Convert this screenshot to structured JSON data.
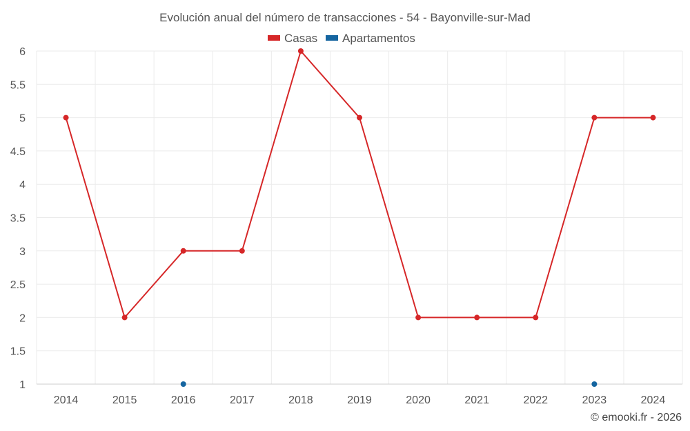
{
  "chart_data": {
    "type": "line",
    "title": "Evolución anual del número de transacciones - 54 - Bayonville-sur-Mad",
    "x": [
      "2014",
      "2015",
      "2016",
      "2017",
      "2018",
      "2019",
      "2020",
      "2021",
      "2022",
      "2023",
      "2024"
    ],
    "ylim": [
      1,
      6
    ],
    "yticks": [
      "1",
      "1.5",
      "2",
      "2.5",
      "3",
      "3.5",
      "4",
      "4.5",
      "5",
      "5.5",
      "6"
    ],
    "grid": true,
    "legend_position": "top-center",
    "series": [
      {
        "name": "Casas",
        "color": "#d62728",
        "values": [
          5,
          2,
          3,
          3,
          6,
          5,
          2,
          2,
          2,
          5,
          5
        ]
      },
      {
        "name": "Apartamentos",
        "color": "#1565a0",
        "values": [
          null,
          null,
          1,
          null,
          null,
          null,
          null,
          null,
          null,
          1,
          null
        ]
      }
    ]
  },
  "credit": "© emooki.fr - 2026"
}
